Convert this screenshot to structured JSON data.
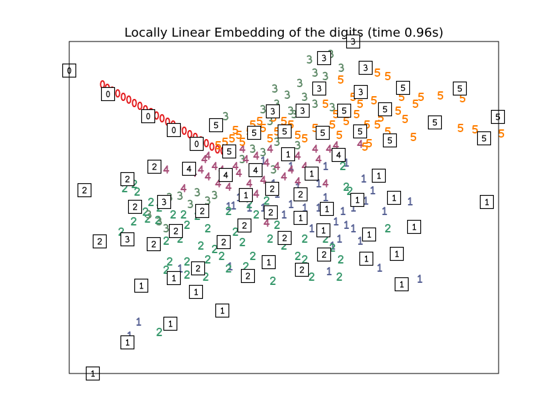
{
  "chart_data": {
    "type": "scatter",
    "title": "Locally Linear Embedding of the digits (time 0.96s)",
    "xlabel": "",
    "ylabel": "",
    "xlim": [
      0,
      6.2
    ],
    "ylim": [
      0,
      4.8
    ],
    "grid": false,
    "ticks": false,
    "colors": {
      "0": "#e31a1c",
      "1": "#5a6496",
      "2": "#3a9a6e",
      "3": "#5f8a68",
      "4": "#a8507a",
      "5": "#ff7f00"
    },
    "points": {
      "0": [
        [
          0.48,
          4.18
        ],
        [
          0.55,
          4.13
        ],
        [
          0.62,
          4.09
        ],
        [
          0.7,
          4.05
        ],
        [
          0.78,
          4.0
        ],
        [
          0.86,
          3.96
        ],
        [
          0.94,
          3.91
        ],
        [
          1.02,
          3.87
        ],
        [
          1.1,
          3.82
        ],
        [
          1.18,
          3.78
        ],
        [
          1.26,
          3.73
        ],
        [
          1.34,
          3.69
        ],
        [
          1.42,
          3.64
        ],
        [
          1.5,
          3.6
        ],
        [
          1.58,
          3.55
        ],
        [
          1.66,
          3.51
        ],
        [
          1.74,
          3.46
        ],
        [
          1.82,
          3.42
        ],
        [
          1.9,
          3.37
        ],
        [
          1.98,
          3.33
        ],
        [
          2.06,
          3.28
        ],
        [
          2.14,
          3.24
        ],
        [
          2.22,
          3.22
        ]
      ],
      "5": [
        [
          3.92,
          4.25
        ],
        [
          4.45,
          4.35
        ],
        [
          4.6,
          4.3
        ],
        [
          4.8,
          4.0
        ],
        [
          5.08,
          4.0
        ],
        [
          5.36,
          4.02
        ],
        [
          5.68,
          3.98
        ],
        [
          4.85,
          3.68
        ],
        [
          4.97,
          3.42
        ],
        [
          5.65,
          3.55
        ],
        [
          5.86,
          3.53
        ],
        [
          6.24,
          3.47
        ],
        [
          4.27,
          3.28
        ],
        [
          4.33,
          3.33
        ],
        [
          4.2,
          3.9
        ],
        [
          4.1,
          4.0
        ],
        [
          4.4,
          3.95
        ],
        [
          4.5,
          3.7
        ],
        [
          4.3,
          3.6
        ],
        [
          4.0,
          3.65
        ],
        [
          3.8,
          3.6
        ],
        [
          3.7,
          3.9
        ],
        [
          3.85,
          3.75
        ],
        [
          4.15,
          3.75
        ],
        [
          4.45,
          3.6
        ],
        [
          4.6,
          3.5
        ],
        [
          3.9,
          3.45
        ],
        [
          3.55,
          3.55
        ],
        [
          3.4,
          3.4
        ],
        [
          3.2,
          3.6
        ],
        [
          3.0,
          3.5
        ],
        [
          2.8,
          3.55
        ],
        [
          2.6,
          3.5
        ],
        [
          2.45,
          3.45
        ],
        [
          2.35,
          3.4
        ],
        [
          2.25,
          3.35
        ],
        [
          2.15,
          3.3
        ],
        [
          2.5,
          3.35
        ],
        [
          2.9,
          3.4
        ],
        [
          3.3,
          3.45
        ],
        [
          3.1,
          3.65
        ],
        [
          2.95,
          3.7
        ],
        [
          2.75,
          3.65
        ],
        [
          2.65,
          3.6
        ],
        [
          2.4,
          3.52
        ],
        [
          4.75,
          3.8
        ],
        [
          5.0,
          3.9
        ]
      ],
      "3": [
        [
          3.47,
          4.54
        ],
        [
          3.78,
          4.62
        ],
        [
          3.55,
          4.35
        ],
        [
          3.7,
          4.3
        ],
        [
          3.93,
          4.42
        ],
        [
          2.97,
          4.12
        ],
        [
          3.15,
          4.03
        ],
        [
          3.33,
          4.2
        ],
        [
          3.4,
          4.0
        ],
        [
          3.55,
          3.9
        ],
        [
          3.8,
          3.85
        ],
        [
          2.8,
          3.82
        ],
        [
          2.9,
          3.65
        ],
        [
          3.2,
          3.8
        ],
        [
          3.0,
          3.9
        ],
        [
          2.26,
          3.72
        ],
        [
          2.65,
          3.25
        ],
        [
          2.8,
          3.2
        ],
        [
          3.0,
          3.35
        ],
        [
          3.3,
          3.3
        ],
        [
          2.5,
          3.1
        ],
        [
          1.45,
          2.55
        ],
        [
          1.6,
          2.57
        ],
        [
          1.85,
          2.62
        ],
        [
          2.0,
          2.5
        ],
        [
          1.75,
          2.45
        ],
        [
          1.3,
          2.2
        ],
        [
          1.4,
          2.1
        ],
        [
          1.15,
          2.3
        ],
        [
          2.1,
          2.58
        ],
        [
          2.95,
          2.95
        ],
        [
          3.25,
          3.75
        ]
      ],
      "4": [
        [
          1.95,
          3.1
        ],
        [
          2.1,
          3.0
        ],
        [
          1.9,
          2.95
        ],
        [
          1.8,
          2.9
        ],
        [
          2.0,
          2.85
        ],
        [
          2.2,
          2.95
        ],
        [
          2.4,
          3.0
        ],
        [
          2.55,
          3.1
        ],
        [
          2.7,
          3.15
        ],
        [
          2.85,
          3.05
        ],
        [
          3.0,
          3.0
        ],
        [
          3.2,
          2.95
        ],
        [
          3.4,
          3.0
        ],
        [
          3.6,
          3.1
        ],
        [
          3.75,
          3.25
        ],
        [
          3.85,
          3.3
        ],
        [
          3.55,
          3.25
        ],
        [
          3.3,
          3.15
        ],
        [
          3.1,
          2.85
        ],
        [
          2.8,
          2.8
        ],
        [
          2.6,
          2.75
        ],
        [
          2.45,
          2.9
        ],
        [
          2.3,
          2.7
        ],
        [
          2.15,
          2.75
        ],
        [
          1.65,
          2.68
        ],
        [
          2.5,
          3.25
        ],
        [
          2.9,
          3.25
        ],
        [
          4.2,
          3.32
        ],
        [
          3.7,
          2.75
        ],
        [
          2.85,
          2.18
        ],
        [
          1.4,
          2.95
        ],
        [
          2.0,
          3.15
        ],
        [
          2.7,
          2.6
        ],
        [
          3.3,
          2.78
        ]
      ],
      "1": [
        [
          2.8,
          3.08
        ],
        [
          3.2,
          3.0
        ],
        [
          3.45,
          2.85
        ],
        [
          3.6,
          2.75
        ],
        [
          3.7,
          3.0
        ],
        [
          4.0,
          3.05
        ],
        [
          4.25,
          2.82
        ],
        [
          4.28,
          2.5
        ],
        [
          4.92,
          2.49
        ],
        [
          4.38,
          2.65
        ],
        [
          4.1,
          2.4
        ],
        [
          3.95,
          2.35
        ],
        [
          3.85,
          2.2
        ],
        [
          4.0,
          2.15
        ],
        [
          4.1,
          2.1
        ],
        [
          3.9,
          1.95
        ],
        [
          3.8,
          1.85
        ],
        [
          3.6,
          2.4
        ],
        [
          3.4,
          2.4
        ],
        [
          3.2,
          2.45
        ],
        [
          3.0,
          2.6
        ],
        [
          3.1,
          2.3
        ],
        [
          3.5,
          2.1
        ],
        [
          2.8,
          2.4
        ],
        [
          2.6,
          2.4
        ],
        [
          2.3,
          2.42
        ],
        [
          2.37,
          2.43
        ],
        [
          1.6,
          1.52
        ],
        [
          1.0,
          0.75
        ],
        [
          0.87,
          0.55
        ],
        [
          4.48,
          1.53
        ],
        [
          5.06,
          1.37
        ],
        [
          4.2,
          1.92
        ],
        [
          3.75,
          1.48
        ],
        [
          2.32,
          1.55
        ],
        [
          3.7,
          2.55
        ],
        [
          3.3,
          2.7
        ],
        [
          2.95,
          2.75
        ],
        [
          2.45,
          2.55
        ],
        [
          4.55,
          2.35
        ]
      ],
      "2": [
        [
          0.8,
          2.68
        ],
        [
          0.98,
          2.63
        ],
        [
          0.94,
          2.74
        ],
        [
          1.18,
          2.48
        ],
        [
          1.13,
          2.24
        ],
        [
          1.28,
          2.22
        ],
        [
          1.1,
          2.34
        ],
        [
          0.75,
          2.05
        ],
        [
          0.93,
          2.2
        ],
        [
          1.5,
          2.3
        ],
        [
          1.65,
          2.3
        ],
        [
          1.85,
          2.28
        ],
        [
          2.0,
          2.1
        ],
        [
          1.6,
          1.95
        ],
        [
          1.4,
          1.92
        ],
        [
          1.9,
          1.85
        ],
        [
          2.1,
          1.8
        ],
        [
          2.2,
          1.7
        ],
        [
          2.0,
          1.65
        ],
        [
          1.7,
          1.62
        ],
        [
          1.45,
          1.62
        ],
        [
          1.4,
          1.5
        ],
        [
          1.7,
          1.43
        ],
        [
          1.97,
          1.4
        ],
        [
          2.3,
          1.52
        ],
        [
          2.55,
          1.55
        ],
        [
          2.65,
          1.7
        ],
        [
          2.5,
          1.9
        ],
        [
          2.4,
          2.05
        ],
        [
          2.3,
          2.35
        ],
        [
          2.7,
          2.3
        ],
        [
          2.9,
          1.95
        ],
        [
          3.1,
          1.85
        ],
        [
          3.3,
          1.7
        ],
        [
          3.4,
          1.95
        ],
        [
          3.7,
          1.95
        ],
        [
          3.8,
          1.82
        ],
        [
          3.92,
          1.65
        ],
        [
          3.9,
          1.4
        ],
        [
          3.5,
          1.4
        ],
        [
          3.4,
          1.65
        ],
        [
          2.94,
          1.34
        ],
        [
          3.0,
          2.15
        ],
        [
          2.6,
          2.45
        ],
        [
          2.85,
          2.5
        ],
        [
          4.0,
          2.7
        ],
        [
          4.6,
          2.1
        ],
        [
          3.95,
          3.0
        ],
        [
          1.3,
          0.6
        ],
        [
          4.05,
          2.64
        ],
        [
          1.7,
          2.15
        ],
        [
          1.3,
          2.4
        ]
      ]
    },
    "thumbnails": [
      [
        0,
        4.38,
        0
      ],
      [
        4.1,
        4.8,
        3
      ],
      [
        3.68,
        4.56,
        3
      ],
      [
        4.28,
        4.42,
        3
      ],
      [
        0.56,
        4.04,
        0
      ],
      [
        3.61,
        4.12,
        3
      ],
      [
        4.21,
        4.07,
        3
      ],
      [
        4.82,
        4.13,
        5
      ],
      [
        5.64,
        4.12,
        5
      ],
      [
        1.14,
        3.72,
        0
      ],
      [
        2.94,
        3.79,
        3
      ],
      [
        3.37,
        3.8,
        3
      ],
      [
        3.97,
        3.8,
        5
      ],
      [
        4.56,
        3.82,
        5
      ],
      [
        6.19,
        3.71,
        5
      ],
      [
        5.28,
        3.63,
        5
      ],
      [
        2.12,
        3.59,
        5
      ],
      [
        1.51,
        3.52,
        0
      ],
      [
        2.67,
        3.48,
        5
      ],
      [
        3.11,
        3.5,
        5
      ],
      [
        3.66,
        3.48,
        5
      ],
      [
        4.2,
        3.5,
        5
      ],
      [
        5.99,
        3.4,
        5
      ],
      [
        4.63,
        3.37,
        5
      ],
      [
        1.84,
        3.32,
        0
      ],
      [
        2.31,
        3.21,
        5
      ],
      [
        3.16,
        3.17,
        1
      ],
      [
        3.89,
        3.16,
        4
      ],
      [
        1.23,
        2.99,
        2
      ],
      [
        1.73,
        2.96,
        4
      ],
      [
        2.69,
        2.94,
        4
      ],
      [
        3.5,
        2.89,
        1
      ],
      [
        2.26,
        2.87,
        4
      ],
      [
        4.47,
        2.86,
        1
      ],
      [
        0.84,
        2.81,
        2
      ],
      [
        0.22,
        2.65,
        2
      ],
      [
        2.93,
        2.67,
        2
      ],
      [
        3.34,
        2.59,
        2
      ],
      [
        2.55,
        2.58,
        1
      ],
      [
        4.69,
        2.54,
        1
      ],
      [
        4.16,
        2.51,
        1
      ],
      [
        1.37,
        2.48,
        3
      ],
      [
        6.03,
        2.48,
        1
      ],
      [
        0.95,
        2.41,
        2
      ],
      [
        3.72,
        2.38,
        1
      ],
      [
        2.91,
        2.33,
        2
      ],
      [
        1.92,
        2.35,
        2
      ],
      [
        3.34,
        2.25,
        1
      ],
      [
        4.98,
        2.12,
        1
      ],
      [
        2.53,
        2.14,
        2
      ],
      [
        1.54,
        2.06,
        2
      ],
      [
        3.67,
        2.07,
        1
      ],
      [
        4.33,
        2.01,
        1
      ],
      [
        0.84,
        1.94,
        3
      ],
      [
        0.44,
        1.91,
        2
      ],
      [
        2.23,
        1.9,
        2
      ],
      [
        3.11,
        1.96,
        2
      ],
      [
        1.22,
        1.87,
        2
      ],
      [
        3.68,
        1.72,
        2
      ],
      [
        4.73,
        1.73,
        1
      ],
      [
        4.29,
        1.66,
        1
      ],
      [
        2.88,
        1.61,
        1
      ],
      [
        1.86,
        1.52,
        2
      ],
      [
        3.36,
        1.5,
        2
      ],
      [
        1.51,
        1.38,
        1
      ],
      [
        2.58,
        1.41,
        2
      ],
      [
        4.8,
        1.29,
        1
      ],
      [
        1.04,
        1.27,
        1
      ],
      [
        1.83,
        1.18,
        1
      ],
      [
        2.21,
        0.91,
        1
      ],
      [
        1.46,
        0.72,
        1
      ],
      [
        0.84,
        0.45,
        1
      ],
      [
        0.34,
        0.0,
        1
      ]
    ]
  }
}
